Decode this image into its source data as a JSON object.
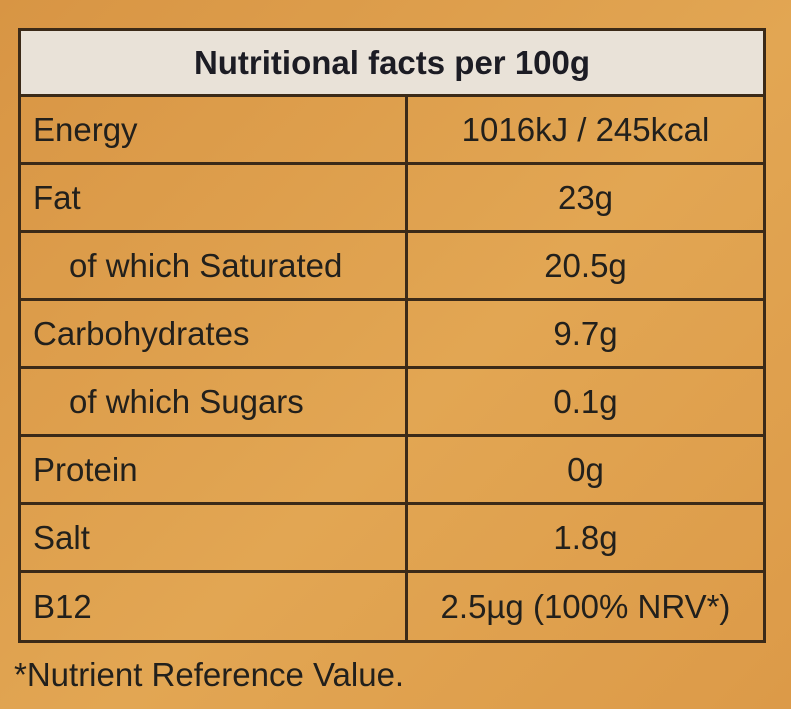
{
  "header": {
    "title": "Nutritional facts per 100g"
  },
  "table": {
    "rows": [
      [
        "Energy",
        "1016kJ / 245kcal"
      ],
      [
        "Fat",
        "23g"
      ],
      [
        "of which Saturated",
        "20.5g"
      ],
      [
        "Carbohydrates",
        "9.7g"
      ],
      [
        "of which Sugars",
        "0.1g"
      ],
      [
        "Protein",
        "0g"
      ],
      [
        "Salt",
        "1.8g"
      ],
      [
        "B12",
        "2.5µg (100% NRV*)"
      ]
    ]
  },
  "footnote": "*Nutrient Reference Value."
}
